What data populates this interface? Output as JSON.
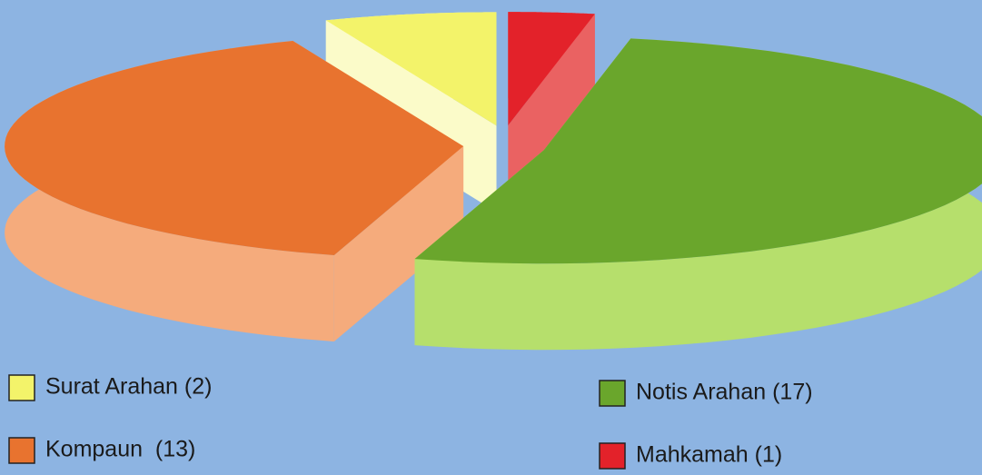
{
  "chart_data": {
    "type": "pie",
    "three_d": true,
    "exploded": true,
    "start_angle": 0,
    "direction": "clockwise",
    "categories": [
      "Mahkamah (1)",
      "Notis Arahan (17)",
      "Kompaun  (13)",
      "Surat Arahan (2)"
    ],
    "values": [
      1,
      17,
      13,
      2
    ],
    "colors": [
      "#e3222a",
      "#6aa62c",
      "#e8732f",
      "#f3f36a"
    ],
    "side_colors": [
      "#ea6262",
      "#b6df6c",
      "#f5ab7c",
      "#fbfbc9"
    ],
    "legend": "bottom"
  }
}
